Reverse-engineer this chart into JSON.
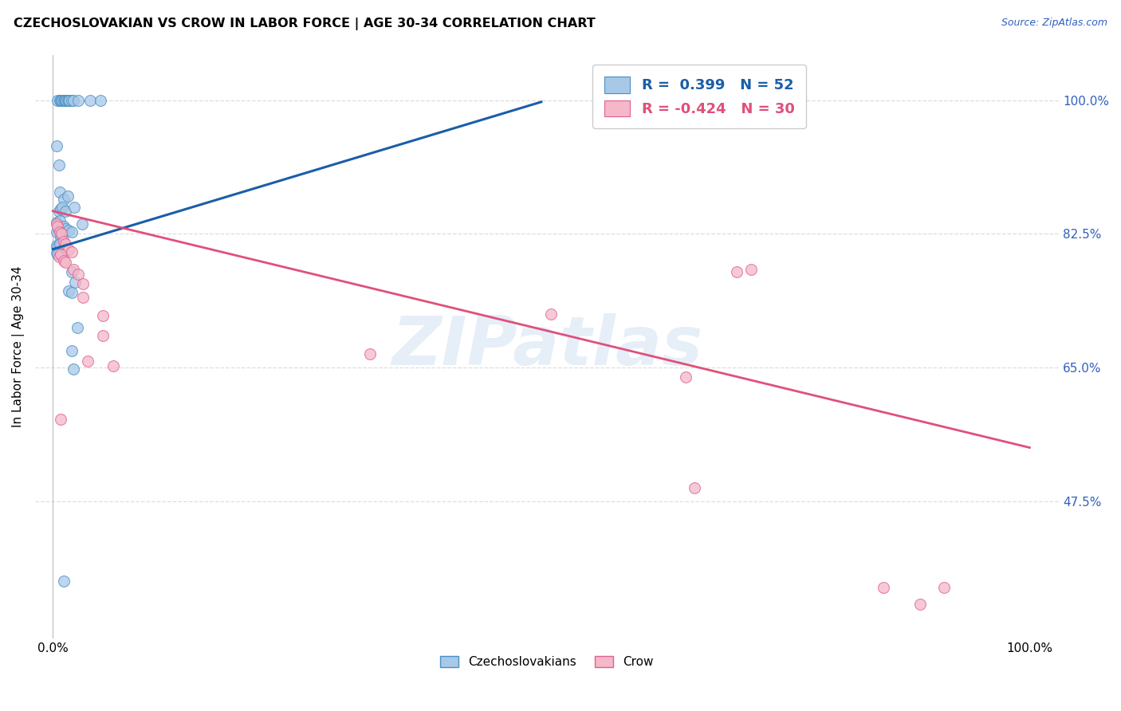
{
  "title": "CZECHOSLOVAKIAN VS CROW IN LABOR FORCE | AGE 30-34 CORRELATION CHART",
  "source": "Source: ZipAtlas.com",
  "ylabel": "In Labor Force | Age 30-34",
  "watermark": "ZIPatlas",
  "legend_label1": "Czechoslovakians",
  "legend_label2": "Crow",
  "blue_color": "#a8c8e8",
  "blue_edge_color": "#4a90c4",
  "pink_color": "#f4b8c8",
  "pink_edge_color": "#e06090",
  "blue_line_color": "#1a5ea8",
  "pink_line_color": "#e0507a",
  "ytick_color": "#3060c0",
  "blue_scatter": [
    [
      0.005,
      1.0
    ],
    [
      0.007,
      1.0
    ],
    [
      0.008,
      1.0
    ],
    [
      0.009,
      1.0
    ],
    [
      0.01,
      1.0
    ],
    [
      0.011,
      1.0
    ],
    [
      0.012,
      1.0
    ],
    [
      0.013,
      1.0
    ],
    [
      0.014,
      1.0
    ],
    [
      0.015,
      1.0
    ],
    [
      0.016,
      1.0
    ],
    [
      0.017,
      1.0
    ],
    [
      0.019,
      1.0
    ],
    [
      0.021,
      1.0
    ],
    [
      0.026,
      1.0
    ],
    [
      0.038,
      1.0
    ],
    [
      0.049,
      1.0
    ],
    [
      0.004,
      0.94
    ],
    [
      0.006,
      0.915
    ],
    [
      0.007,
      0.88
    ],
    [
      0.011,
      0.87
    ],
    [
      0.015,
      0.875
    ],
    [
      0.006,
      0.855
    ],
    [
      0.008,
      0.858
    ],
    [
      0.01,
      0.86
    ],
    [
      0.013,
      0.855
    ],
    [
      0.004,
      0.84
    ],
    [
      0.007,
      0.842
    ],
    [
      0.004,
      0.828
    ],
    [
      0.006,
      0.83
    ],
    [
      0.008,
      0.832
    ],
    [
      0.011,
      0.835
    ],
    [
      0.013,
      0.832
    ],
    [
      0.016,
      0.83
    ],
    [
      0.019,
      0.828
    ],
    [
      0.008,
      0.82
    ],
    [
      0.01,
      0.818
    ],
    [
      0.004,
      0.81
    ],
    [
      0.005,
      0.808
    ],
    [
      0.007,
      0.812
    ],
    [
      0.004,
      0.8
    ],
    [
      0.005,
      0.798
    ],
    [
      0.022,
      0.86
    ],
    [
      0.03,
      0.838
    ],
    [
      0.019,
      0.775
    ],
    [
      0.023,
      0.762
    ],
    [
      0.016,
      0.75
    ],
    [
      0.019,
      0.748
    ],
    [
      0.025,
      0.702
    ],
    [
      0.019,
      0.672
    ],
    [
      0.021,
      0.648
    ],
    [
      0.011,
      0.37
    ]
  ],
  "pink_scatter": [
    [
      0.004,
      0.838
    ],
    [
      0.005,
      0.835
    ],
    [
      0.007,
      0.828
    ],
    [
      0.009,
      0.825
    ],
    [
      0.011,
      0.815
    ],
    [
      0.013,
      0.812
    ],
    [
      0.016,
      0.805
    ],
    [
      0.019,
      0.802
    ],
    [
      0.006,
      0.795
    ],
    [
      0.008,
      0.798
    ],
    [
      0.011,
      0.79
    ],
    [
      0.013,
      0.788
    ],
    [
      0.021,
      0.778
    ],
    [
      0.026,
      0.772
    ],
    [
      0.031,
      0.76
    ],
    [
      0.031,
      0.742
    ],
    [
      0.036,
      0.658
    ],
    [
      0.051,
      0.718
    ],
    [
      0.051,
      0.692
    ],
    [
      0.062,
      0.652
    ],
    [
      0.008,
      0.582
    ],
    [
      0.325,
      0.668
    ],
    [
      0.51,
      0.72
    ],
    [
      0.648,
      0.638
    ],
    [
      0.657,
      0.492
    ],
    [
      0.7,
      0.775
    ],
    [
      0.715,
      0.778
    ],
    [
      0.85,
      0.362
    ],
    [
      0.888,
      0.34
    ],
    [
      0.912,
      0.362
    ]
  ],
  "blue_trend_x": [
    0.0,
    0.5
  ],
  "blue_trend_y": [
    0.805,
    0.998
  ],
  "pink_trend_x": [
    0.0,
    1.0
  ],
  "pink_trend_y": [
    0.855,
    0.545
  ],
  "xlim": [
    -0.018,
    1.03
  ],
  "ylim": [
    0.295,
    1.06
  ],
  "ytick_vals": [
    0.475,
    0.65,
    0.825,
    1.0
  ],
  "ytick_labels": [
    "47.5%",
    "65.0%",
    "82.5%",
    "100.0%"
  ],
  "xtick_vals": [
    0.0,
    0.25,
    0.5,
    0.75,
    1.0
  ],
  "xtick_labels": [
    "0.0%",
    "",
    "",
    "",
    "100.0%"
  ],
  "grid_color": "#dddddd",
  "background": "#ffffff",
  "marker_size": 100,
  "marker_alpha": 0.75,
  "marker_linewidth": 0.8
}
